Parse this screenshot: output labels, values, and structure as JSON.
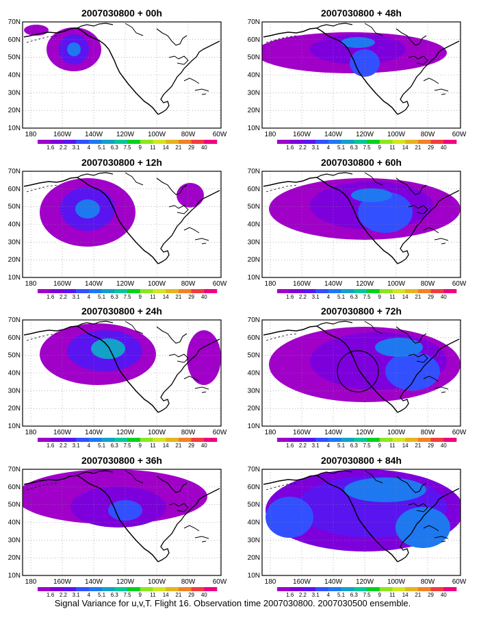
{
  "caption": "Signal Variance for u,v,T. Flight 16. Observation time 2007030800. 2007030500 ensemble.",
  "lat_labels": [
    "70N",
    "60N",
    "50N",
    "40N",
    "30N",
    "20N",
    "10N"
  ],
  "lon_labels": [
    "180",
    "160W",
    "140W",
    "120W",
    "100W",
    "80W",
    "60W"
  ],
  "colorbar": {
    "labels": [
      "1.6",
      "2.2",
      "3.1",
      "4",
      "5.1",
      "6.3",
      "7.5",
      "9",
      "11",
      "14",
      "21",
      "29",
      "40"
    ],
    "colors": [
      "#a000c8",
      "#7d00dc",
      "#5a14f0",
      "#3250ff",
      "#1e78f0",
      "#14a0c8",
      "#00c896",
      "#00d21e",
      "#8ce61e",
      "#d2e61e",
      "#e6b41e",
      "#f08228",
      "#f03c3c",
      "#f00082"
    ]
  },
  "panels": [
    {
      "title": "2007030800 + 00h",
      "id": "p00"
    },
    {
      "title": "2007030800 + 48h",
      "id": "p48"
    },
    {
      "title": "2007030800 + 12h",
      "id": "p12"
    },
    {
      "title": "2007030800 + 60h",
      "id": "p60"
    },
    {
      "title": "2007030800 + 24h",
      "id": "p24"
    },
    {
      "title": "2007030800 + 72h",
      "id": "p72"
    },
    {
      "title": "2007030800 + 36h",
      "id": "p36"
    },
    {
      "title": "2007030800 + 84h",
      "id": "p84"
    }
  ]
}
